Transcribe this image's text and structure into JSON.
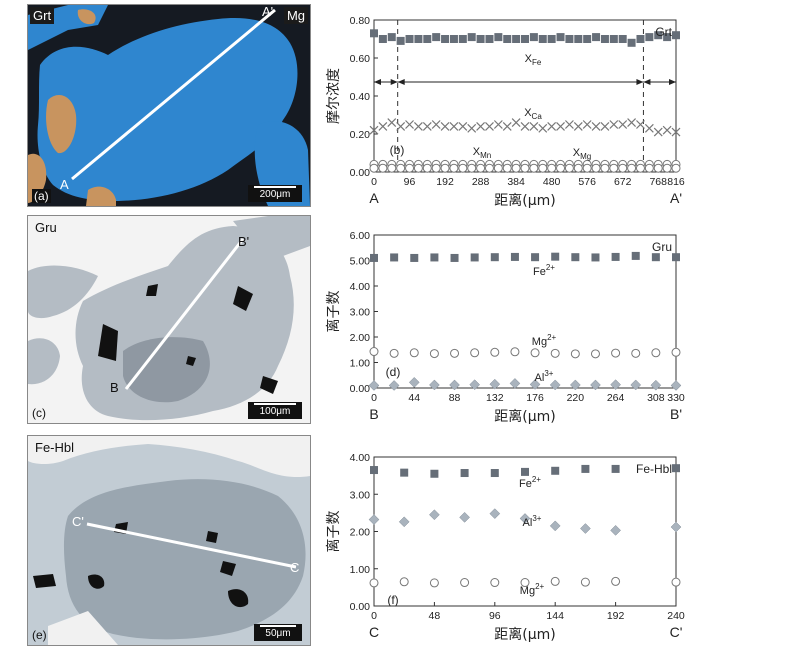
{
  "panels": [
    {
      "id": "a",
      "photo": {
        "corner_tags": [
          "Grt",
          "Mg"
        ],
        "panel_label": "(a)",
        "line_start": "A",
        "line_end": "A'",
        "scale_bar": "200μm",
        "colors": {
          "background": "#151a22",
          "grain": "#2f86cf",
          "grain_hi": "#4aa2e8",
          "inclusion": "#c8945f"
        }
      }
    },
    {
      "id": "c",
      "photo": {
        "corner_tags": [
          "Gru"
        ],
        "panel_label": "(c)",
        "line_start": "B",
        "line_end": "B'",
        "scale_bar": "100μm",
        "colors": {
          "background": "#f3f3f3",
          "grain": "#b4bcc4",
          "grain_dark": "#8f98a2",
          "inclusion": "#111111"
        }
      }
    },
    {
      "id": "e",
      "photo": {
        "corner_tags": [
          "Fe-Hbl"
        ],
        "panel_label": "(e)",
        "line_start": "C'",
        "line_end": "C",
        "scale_bar": "50μm",
        "colors": {
          "background": "#c2ccd4",
          "grain": "#9aa6b0",
          "grain_dark": "#7d8a95",
          "inclusion": "#111111"
        }
      }
    }
  ],
  "chart_data": [
    {
      "id": "b",
      "type": "scatter",
      "panel_label": "(b)",
      "mineral_tag": "Grt",
      "xlabel": "距离(μm)",
      "ylabel": "摩尔浓度",
      "x_start_label": "A",
      "x_end_label": "A'",
      "xlim": [
        0,
        816
      ],
      "ylim": [
        0,
        0.8
      ],
      "xticks": [
        0,
        96,
        192,
        288,
        384,
        480,
        576,
        672,
        768,
        816
      ],
      "yticks": [
        "0.00",
        "0.20",
        "0.40",
        "0.60",
        "0.80"
      ],
      "zones": [
        64,
        728
      ],
      "series": [
        {
          "name": "XFe",
          "marker": "square",
          "color": "#666e78",
          "x": [
            0,
            24,
            48,
            72,
            96,
            120,
            144,
            168,
            192,
            216,
            240,
            264,
            288,
            312,
            336,
            360,
            384,
            408,
            432,
            456,
            480,
            504,
            528,
            552,
            576,
            600,
            624,
            648,
            672,
            696,
            720,
            744,
            768,
            792,
            816
          ],
          "values": [
            0.73,
            0.7,
            0.71,
            0.69,
            0.7,
            0.7,
            0.7,
            0.71,
            0.7,
            0.7,
            0.7,
            0.71,
            0.7,
            0.7,
            0.71,
            0.7,
            0.7,
            0.7,
            0.71,
            0.7,
            0.7,
            0.71,
            0.7,
            0.7,
            0.7,
            0.71,
            0.7,
            0.7,
            0.7,
            0.68,
            0.7,
            0.71,
            0.72,
            0.71,
            0.72
          ]
        },
        {
          "name": "XCa",
          "marker": "x",
          "color": "#777777",
          "x": [
            0,
            24,
            48,
            72,
            96,
            120,
            144,
            168,
            192,
            216,
            240,
            264,
            288,
            312,
            336,
            360,
            384,
            408,
            432,
            456,
            480,
            504,
            528,
            552,
            576,
            600,
            624,
            648,
            672,
            696,
            720,
            744,
            768,
            792,
            816
          ],
          "values": [
            0.22,
            0.24,
            0.26,
            0.24,
            0.25,
            0.24,
            0.24,
            0.25,
            0.24,
            0.24,
            0.24,
            0.23,
            0.24,
            0.24,
            0.25,
            0.24,
            0.26,
            0.24,
            0.24,
            0.23,
            0.24,
            0.24,
            0.25,
            0.24,
            0.25,
            0.24,
            0.24,
            0.25,
            0.25,
            0.26,
            0.25,
            0.23,
            0.21,
            0.22,
            0.21
          ]
        },
        {
          "name": "XMn",
          "marker": "circle",
          "color": "#777777",
          "x": [
            0,
            24,
            48,
            72,
            96,
            120,
            144,
            168,
            192,
            216,
            240,
            264,
            288,
            312,
            336,
            360,
            384,
            408,
            432,
            456,
            480,
            504,
            528,
            552,
            576,
            600,
            624,
            648,
            672,
            696,
            720,
            744,
            768,
            792,
            816
          ],
          "values": [
            0.04,
            0.04,
            0.04,
            0.04,
            0.04,
            0.04,
            0.04,
            0.04,
            0.04,
            0.04,
            0.04,
            0.04,
            0.04,
            0.04,
            0.04,
            0.04,
            0.04,
            0.04,
            0.04,
            0.04,
            0.04,
            0.04,
            0.04,
            0.04,
            0.04,
            0.04,
            0.04,
            0.04,
            0.04,
            0.04,
            0.04,
            0.04,
            0.04,
            0.04,
            0.04
          ]
        },
        {
          "name": "XMg",
          "marker": "circle",
          "color": "#777777",
          "x": [
            0,
            24,
            48,
            72,
            96,
            120,
            144,
            168,
            192,
            216,
            240,
            264,
            288,
            312,
            336,
            360,
            384,
            408,
            432,
            456,
            480,
            504,
            528,
            552,
            576,
            600,
            624,
            648,
            672,
            696,
            720,
            744,
            768,
            792,
            816
          ],
          "values": [
            0.02,
            0.02,
            0.02,
            0.02,
            0.02,
            0.02,
            0.02,
            0.02,
            0.02,
            0.02,
            0.02,
            0.02,
            0.02,
            0.02,
            0.02,
            0.02,
            0.02,
            0.02,
            0.02,
            0.02,
            0.02,
            0.02,
            0.02,
            0.02,
            0.02,
            0.02,
            0.02,
            0.02,
            0.02,
            0.02,
            0.02,
            0.02,
            0.02,
            0.02,
            0.02
          ]
        }
      ]
    },
    {
      "id": "d",
      "type": "scatter",
      "panel_label": "(d)",
      "mineral_tag": "Gru",
      "xlabel": "距离(μm)",
      "ylabel": "离子数",
      "x_start_label": "B",
      "x_end_label": "B'",
      "xlim": [
        0,
        330
      ],
      "ylim": [
        0,
        6
      ],
      "xticks": [
        0,
        44,
        88,
        132,
        176,
        220,
        264,
        308,
        330
      ],
      "yticks": [
        "0.00",
        "1.00",
        "2.00",
        "3.00",
        "4.00",
        "5.00",
        "6.00"
      ],
      "series": [
        {
          "name": "Fe2+",
          "marker": "square",
          "color": "#666e78",
          "x": [
            0,
            22,
            44,
            66,
            88,
            110,
            132,
            154,
            176,
            198,
            220,
            242,
            264,
            286,
            308,
            330
          ],
          "values": [
            5.1,
            5.12,
            5.1,
            5.12,
            5.1,
            5.12,
            5.13,
            5.14,
            5.13,
            5.15,
            5.13,
            5.12,
            5.14,
            5.18,
            5.13,
            5.13
          ]
        },
        {
          "name": "Mg2+",
          "marker": "circle",
          "color": "#777777",
          "x": [
            0,
            22,
            44,
            66,
            88,
            110,
            132,
            154,
            176,
            198,
            220,
            242,
            264,
            286,
            308,
            330
          ],
          "values": [
            1.43,
            1.36,
            1.38,
            1.35,
            1.36,
            1.38,
            1.4,
            1.42,
            1.38,
            1.36,
            1.34,
            1.34,
            1.37,
            1.36,
            1.38,
            1.4
          ]
        },
        {
          "name": "Al3+",
          "marker": "diamond",
          "color": "#a9b3bd",
          "x": [
            0,
            22,
            44,
            66,
            88,
            110,
            132,
            154,
            176,
            198,
            220,
            242,
            264,
            286,
            308,
            330
          ],
          "values": [
            0.1,
            0.1,
            0.22,
            0.12,
            0.12,
            0.13,
            0.15,
            0.18,
            0.14,
            0.12,
            0.12,
            0.12,
            0.13,
            0.12,
            0.11,
            0.1
          ]
        }
      ]
    },
    {
      "id": "f",
      "type": "scatter",
      "panel_label": "(f)",
      "mineral_tag": "Fe-Hbl",
      "xlabel": "距离(μm)",
      "ylabel": "离子数",
      "x_start_label": "C",
      "x_end_label": "C'",
      "xlim": [
        0,
        240
      ],
      "ylim": [
        0,
        4
      ],
      "xticks": [
        0,
        48,
        96,
        144,
        192,
        240
      ],
      "yticks": [
        "0.00",
        "1.00",
        "2.00",
        "3.00",
        "4.00"
      ],
      "series": [
        {
          "name": "Fe2+",
          "marker": "square",
          "color": "#666e78",
          "x": [
            0,
            24,
            48,
            72,
            96,
            120,
            144,
            168,
            192,
            240
          ],
          "values": [
            3.65,
            3.58,
            3.55,
            3.57,
            3.57,
            3.6,
            3.63,
            3.68,
            3.68,
            3.7
          ]
        },
        {
          "name": "Al3+",
          "marker": "diamond",
          "color": "#a9b3bd",
          "x": [
            0,
            24,
            48,
            72,
            96,
            120,
            144,
            168,
            192,
            240
          ],
          "values": [
            2.32,
            2.26,
            2.45,
            2.38,
            2.48,
            2.35,
            2.15,
            2.08,
            2.03,
            2.12
          ]
        },
        {
          "name": "Mg2+",
          "marker": "circle",
          "color": "#777777",
          "x": [
            0,
            24,
            48,
            72,
            96,
            120,
            144,
            168,
            192,
            240
          ],
          "values": [
            0.62,
            0.65,
            0.62,
            0.63,
            0.63,
            0.63,
            0.66,
            0.64,
            0.66,
            0.64
          ]
        }
      ]
    }
  ]
}
